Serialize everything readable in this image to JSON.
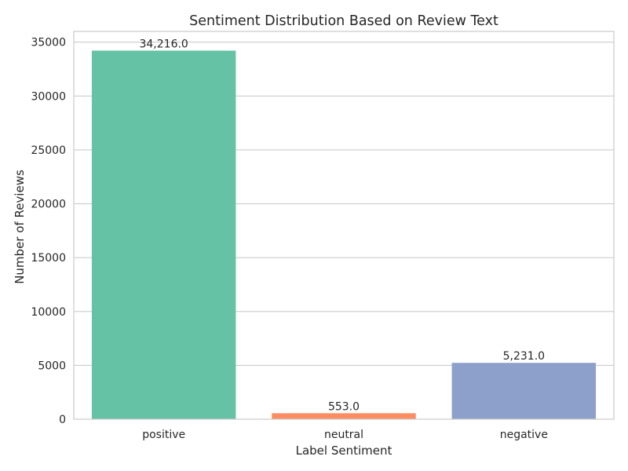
{
  "chart_data": {
    "type": "bar",
    "title": "Sentiment Distribution Based on Review Text",
    "xlabel": "Label Sentiment",
    "ylabel": "Number of Reviews",
    "categories": [
      "positive",
      "neutral",
      "negative"
    ],
    "values": [
      34216,
      553,
      5231
    ],
    "data_labels": [
      "34,216.0",
      "553.0",
      "5,231.0"
    ],
    "colors": [
      "#66c2a5",
      "#fc8d62",
      "#8da0cb"
    ],
    "ylim": [
      0,
      36000
    ],
    "yticks": [
      0,
      5000,
      10000,
      15000,
      20000,
      25000,
      30000,
      35000
    ],
    "ytick_labels": [
      "0",
      "5000",
      "10000",
      "15000",
      "20000",
      "25000",
      "30000",
      "35000"
    ],
    "grid": "horizontal",
    "style": "whitegrid"
  }
}
